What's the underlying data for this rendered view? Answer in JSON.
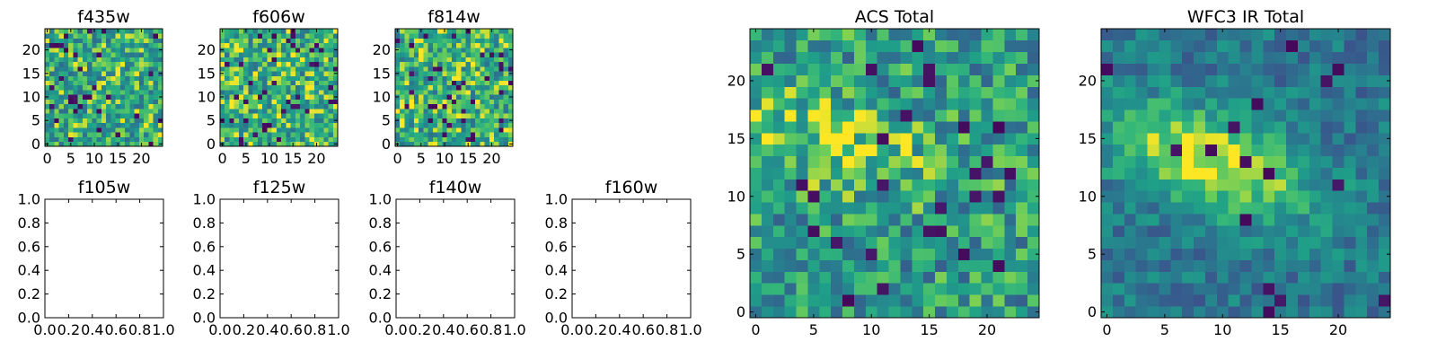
{
  "chart_data": [
    {
      "type": "heatmap",
      "title": "f435w",
      "xlim": [
        -0.5,
        24.5
      ],
      "ylim": [
        -0.5,
        24.5
      ],
      "xticks": [
        0,
        5,
        10,
        15,
        20
      ],
      "yticks": [
        0,
        5,
        10,
        15,
        20
      ],
      "xticklabels": [
        "0",
        "5",
        "10",
        "15",
        "20"
      ],
      "yticklabels": [
        "0",
        "5",
        "10",
        "15",
        "20"
      ],
      "grid_size": 25,
      "colormap": "viridis",
      "pattern": {
        "seed": 11,
        "base": 0.7,
        "noise": 0.3,
        "dark_fraction": 0.05
      }
    },
    {
      "type": "heatmap",
      "title": "f606w",
      "xlim": [
        -0.5,
        24.5
      ],
      "ylim": [
        -0.5,
        24.5
      ],
      "xticks": [
        0,
        5,
        10,
        15,
        20
      ],
      "yticks": [
        0,
        5,
        10,
        15,
        20
      ],
      "xticklabels": [
        "0",
        "5",
        "10",
        "15",
        "20"
      ],
      "yticklabels": [
        "0",
        "5",
        "10",
        "15",
        "20"
      ],
      "grid_size": 25,
      "colormap": "viridis",
      "pattern": {
        "seed": 23,
        "base": 0.72,
        "noise": 0.3,
        "dark_fraction": 0.06
      }
    },
    {
      "type": "heatmap",
      "title": "f814w",
      "xlim": [
        -0.5,
        24.5
      ],
      "ylim": [
        -0.5,
        24.5
      ],
      "xticks": [
        0,
        5,
        10,
        15,
        20
      ],
      "yticks": [
        0,
        5,
        10,
        15,
        20
      ],
      "xticklabels": [
        "0",
        "5",
        "10",
        "15",
        "20"
      ],
      "yticklabels": [
        "0",
        "5",
        "10",
        "15",
        "20"
      ],
      "grid_size": 25,
      "colormap": "viridis",
      "pattern": {
        "seed": 37,
        "base": 0.72,
        "noise": 0.3,
        "dark_fraction": 0.07
      }
    },
    {
      "type": "empty",
      "title": "f105w",
      "xlim": [
        0,
        1
      ],
      "ylim": [
        0,
        1
      ],
      "xticks": [
        0,
        0.2,
        0.4,
        0.6,
        0.8,
        1.0
      ],
      "yticks": [
        0,
        0.2,
        0.4,
        0.6,
        0.8,
        1.0
      ],
      "xticklabels": [
        "0.0",
        "0.2",
        "0.4",
        "0.6",
        "0.8",
        "1.0"
      ],
      "yticklabels": [
        "0.0",
        "0.2",
        "0.4",
        "0.6",
        "0.8",
        "1.0"
      ]
    },
    {
      "type": "empty",
      "title": "f125w",
      "xlim": [
        0,
        1
      ],
      "ylim": [
        0,
        1
      ],
      "xticks": [
        0,
        0.2,
        0.4,
        0.6,
        0.8,
        1.0
      ],
      "yticks": [
        0,
        0.2,
        0.4,
        0.6,
        0.8,
        1.0
      ],
      "xticklabels": [
        "0.0",
        "0.2",
        "0.4",
        "0.6",
        "0.8",
        "1.0"
      ],
      "yticklabels": [
        "0.0",
        "0.2",
        "0.4",
        "0.6",
        "0.8",
        "1.0"
      ]
    },
    {
      "type": "empty",
      "title": "f140w",
      "xlim": [
        0,
        1
      ],
      "ylim": [
        0,
        1
      ],
      "xticks": [
        0,
        0.2,
        0.4,
        0.6,
        0.8,
        1.0
      ],
      "yticks": [
        0,
        0.2,
        0.4,
        0.6,
        0.8,
        1.0
      ],
      "xticklabels": [
        "0.0",
        "0.2",
        "0.4",
        "0.6",
        "0.8",
        "1.0"
      ],
      "yticklabels": [
        "0.0",
        "0.2",
        "0.4",
        "0.6",
        "0.8",
        "1.0"
      ]
    },
    {
      "type": "empty",
      "title": "f160w",
      "xlim": [
        0,
        1
      ],
      "ylim": [
        0,
        1
      ],
      "xticks": [
        0,
        0.2,
        0.4,
        0.6,
        0.8,
        1.0
      ],
      "yticks": [
        0,
        0.2,
        0.4,
        0.6,
        0.8,
        1.0
      ],
      "xticklabels": [
        "0.0",
        "0.2",
        "0.4",
        "0.6",
        "0.8",
        "1.0"
      ],
      "yticklabels": [
        "0.0",
        "0.2",
        "0.4",
        "0.6",
        "0.8",
        "1.0"
      ]
    },
    {
      "type": "heatmap",
      "title": "ACS Total",
      "xlim": [
        -0.5,
        24.5
      ],
      "ylim": [
        -0.5,
        24.5
      ],
      "xticks": [
        0,
        5,
        10,
        15,
        20
      ],
      "yticks": [
        0,
        5,
        10,
        15,
        20
      ],
      "xticklabels": [
        "0",
        "5",
        "10",
        "15",
        "20"
      ],
      "yticklabels": [
        "0",
        "5",
        "10",
        "15",
        "20"
      ],
      "grid_size": 25,
      "colormap": "viridis",
      "pattern": {
        "seed": 51,
        "base": 0.62,
        "noise": 0.28,
        "dark_fraction": 0.04,
        "blob": {
          "cx": 7,
          "cy": 14.5,
          "sx": 6,
          "sy": 2.5,
          "angle_deg": -15,
          "amp": 0.25
        }
      }
    },
    {
      "type": "heatmap",
      "title": "WFC3 IR Total",
      "xlim": [
        -0.5,
        24.5
      ],
      "ylim": [
        -0.5,
        24.5
      ],
      "xticks": [
        0,
        5,
        10,
        15,
        20
      ],
      "yticks": [
        0,
        5,
        10,
        15,
        20
      ],
      "xticklabels": [
        "0",
        "5",
        "10",
        "15",
        "20"
      ],
      "yticklabels": [
        "0",
        "5",
        "10",
        "15",
        "20"
      ],
      "grid_size": 25,
      "colormap": "viridis",
      "pattern": {
        "seed": 67,
        "base": 0.45,
        "noise": 0.16,
        "dark_fraction": 0.03,
        "blob": {
          "cx": 9,
          "cy": 13,
          "sx": 6.5,
          "sy": 2.8,
          "angle_deg": -20,
          "amp": 0.55
        }
      }
    }
  ]
}
